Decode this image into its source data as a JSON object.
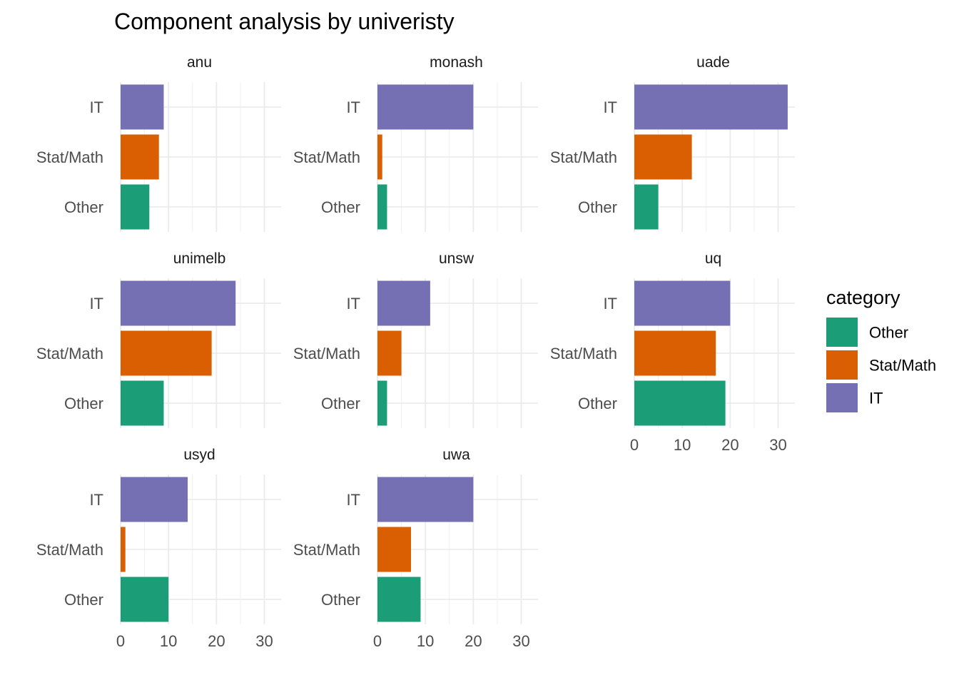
{
  "chart_data": {
    "type": "bar",
    "orientation": "horizontal",
    "facets": "wrap",
    "title": "Component analysis by univeristy",
    "categories": [
      "IT",
      "Stat/Math",
      "Other"
    ],
    "xlim": [
      0,
      33
    ],
    "x_ticks": [
      0,
      10,
      20,
      30
    ],
    "grid": true,
    "legend": {
      "title": "category",
      "position": "right",
      "entries": [
        {
          "label": "Other",
          "color": "#1b9e77"
        },
        {
          "label": "Stat/Math",
          "color": "#d95f02"
        },
        {
          "label": "IT",
          "color": "#7570b3"
        }
      ]
    },
    "panels": [
      {
        "name": "anu",
        "values": {
          "IT": 9,
          "Stat/Math": 8,
          "Other": 6
        }
      },
      {
        "name": "monash",
        "values": {
          "IT": 20,
          "Stat/Math": 1,
          "Other": 2
        }
      },
      {
        "name": "uade",
        "values": {
          "IT": 32,
          "Stat/Math": 12,
          "Other": 5
        }
      },
      {
        "name": "unimelb",
        "values": {
          "IT": 24,
          "Stat/Math": 19,
          "Other": 9
        }
      },
      {
        "name": "unsw",
        "values": {
          "IT": 11,
          "Stat/Math": 5,
          "Other": 2
        }
      },
      {
        "name": "uq",
        "values": {
          "IT": 20,
          "Stat/Math": 17,
          "Other": 19
        }
      },
      {
        "name": "usyd",
        "values": {
          "IT": 14,
          "Stat/Math": 1,
          "Other": 10
        }
      },
      {
        "name": "uwa",
        "values": {
          "IT": 20,
          "Stat/Math": 7,
          "Other": 9
        }
      }
    ]
  }
}
